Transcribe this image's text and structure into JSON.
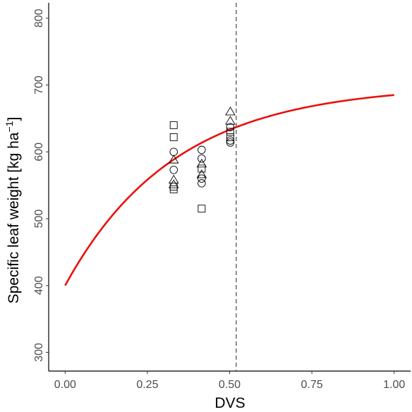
{
  "chart_data": {
    "type": "scatter",
    "xlabel": "DVS",
    "ylabel": "Specific leaf weight [kg ha",
    "ylabel_superscript": "−1",
    "ylabel_close": "]",
    "xlim": [
      -0.05,
      1.05
    ],
    "ylim": [
      272,
      823
    ],
    "x_ticks": [
      0.0,
      0.25,
      0.5,
      0.75,
      1.0
    ],
    "x_tick_labels": [
      "0.00",
      "0.25",
      "0.50",
      "0.75",
      "1.00"
    ],
    "y_ticks": [
      300,
      400,
      500,
      600,
      700,
      800
    ],
    "y_tick_labels": [
      "300",
      "400",
      "500",
      "600",
      "700",
      "800"
    ],
    "grid": false,
    "vline": {
      "x": 0.52,
      "style": "dashed",
      "color": "#555555"
    },
    "curve": {
      "type": "line",
      "color": "#e8120c",
      "formula": "y = 700 - 300 * exp(-3 * x)",
      "x_range": [
        0.0,
        1.0
      ]
    },
    "series": [
      {
        "marker": "square",
        "points": [
          {
            "x": 0.33,
            "y": 640
          },
          {
            "x": 0.33,
            "y": 622
          },
          {
            "x": 0.33,
            "y": 548
          },
          {
            "x": 0.33,
            "y": 544
          },
          {
            "x": 0.415,
            "y": 575
          },
          {
            "x": 0.415,
            "y": 515
          },
          {
            "x": 0.502,
            "y": 630
          },
          {
            "x": 0.502,
            "y": 622
          }
        ]
      },
      {
        "marker": "circle",
        "points": [
          {
            "x": 0.33,
            "y": 600
          },
          {
            "x": 0.33,
            "y": 573
          },
          {
            "x": 0.415,
            "y": 603
          },
          {
            "x": 0.415,
            "y": 590
          },
          {
            "x": 0.415,
            "y": 560
          },
          {
            "x": 0.415,
            "y": 553
          },
          {
            "x": 0.502,
            "y": 637
          },
          {
            "x": 0.502,
            "y": 617
          },
          {
            "x": 0.502,
            "y": 614
          }
        ]
      },
      {
        "marker": "triangle",
        "points": [
          {
            "x": 0.33,
            "y": 588
          },
          {
            "x": 0.33,
            "y": 558
          },
          {
            "x": 0.33,
            "y": 551
          },
          {
            "x": 0.415,
            "y": 582
          },
          {
            "x": 0.415,
            "y": 566
          },
          {
            "x": 0.502,
            "y": 660
          },
          {
            "x": 0.502,
            "y": 646
          }
        ]
      }
    ]
  }
}
